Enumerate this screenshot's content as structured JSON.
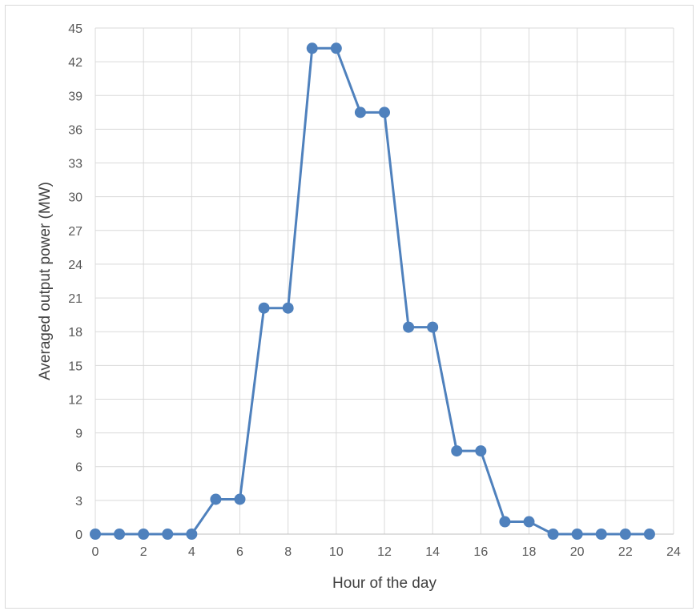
{
  "chart_data": {
    "type": "line",
    "title": "",
    "xlabel": "Hour of the day",
    "ylabel": "Averaged output power (MW)",
    "xlim": [
      0,
      24
    ],
    "ylim": [
      0,
      45
    ],
    "xticks": [
      0,
      2,
      4,
      6,
      8,
      10,
      12,
      14,
      16,
      18,
      20,
      22,
      24
    ],
    "yticks": [
      0,
      3,
      6,
      9,
      12,
      15,
      18,
      21,
      24,
      27,
      30,
      33,
      36,
      39,
      42,
      45
    ],
    "grid": true,
    "legend": "none",
    "series": [
      {
        "color": "#4f81bd",
        "x": [
          0,
          1,
          2,
          3,
          4,
          5,
          6,
          7,
          8,
          9,
          10,
          11,
          12,
          13,
          14,
          15,
          16,
          17,
          18,
          19,
          20,
          21,
          22,
          23
        ],
        "y": [
          0,
          0,
          0,
          0,
          0,
          3.1,
          3.1,
          20.1,
          20.1,
          43.2,
          43.2,
          37.5,
          37.5,
          18.4,
          18.4,
          7.4,
          7.4,
          1.1,
          1.1,
          0,
          0,
          0,
          0,
          0
        ]
      }
    ]
  }
}
